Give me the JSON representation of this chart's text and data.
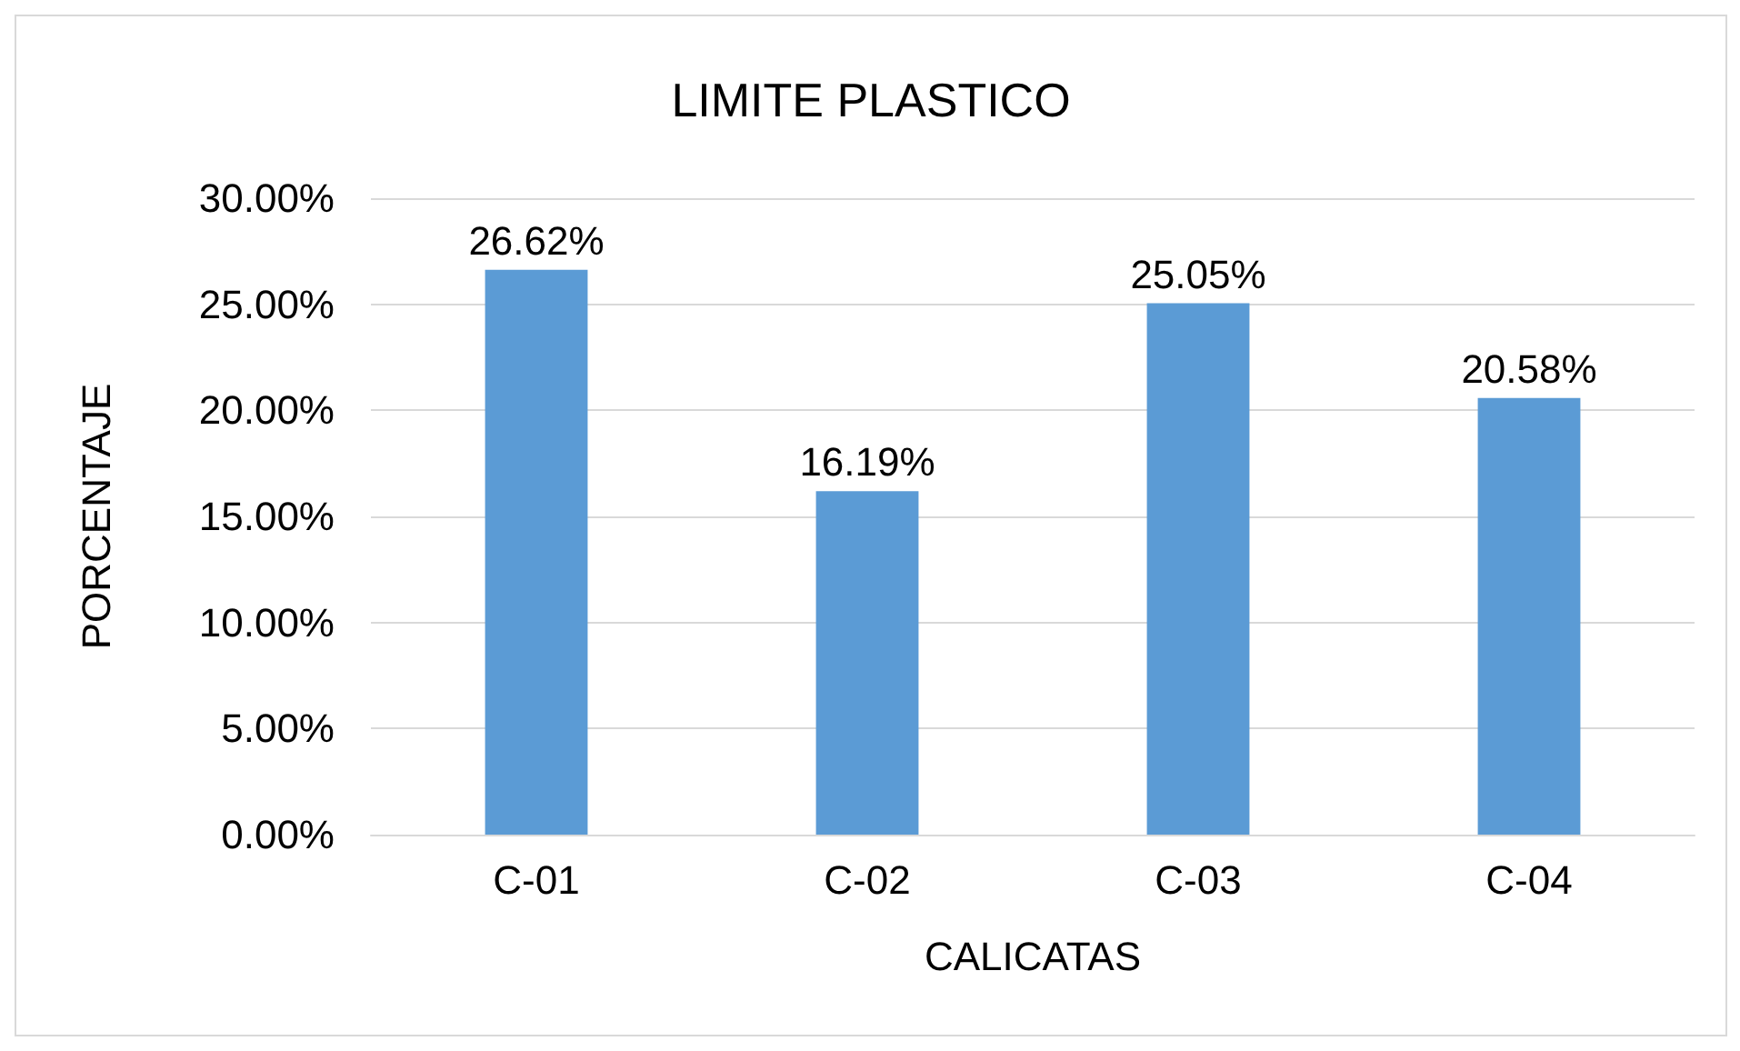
{
  "chart_data": {
    "type": "bar",
    "title": "LIMITE PLASTICO",
    "xlabel": "CALICATAS",
    "ylabel": "PORCENTAJE",
    "categories": [
      "C-01",
      "C-02",
      "C-03",
      "C-04"
    ],
    "values": [
      26.62,
      16.19,
      25.05,
      20.58
    ],
    "value_labels": [
      "26.62%",
      "16.19%",
      "25.05%",
      "20.58%"
    ],
    "color": "#5b9bd5",
    "ylim": [
      0,
      30
    ],
    "yticks": [
      {
        "value": 0,
        "label": "0.00%"
      },
      {
        "value": 5,
        "label": "5.00%"
      },
      {
        "value": 10,
        "label": "10.00%"
      },
      {
        "value": 15,
        "label": "15.00%"
      },
      {
        "value": 20,
        "label": "20.00%"
      },
      {
        "value": 25,
        "label": "25.00%"
      },
      {
        "value": 30,
        "label": "30.00%"
      }
    ],
    "grid": "y"
  }
}
